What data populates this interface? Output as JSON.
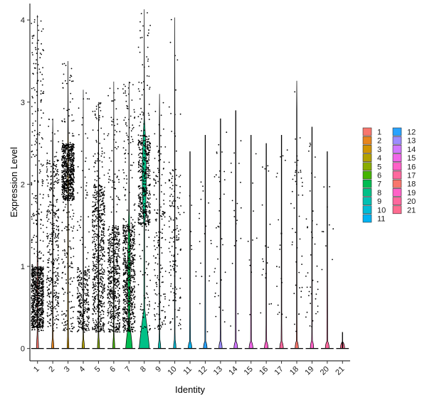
{
  "chart_data": {
    "type": "violin",
    "xlabel": "Identity",
    "ylabel": "Expression Level",
    "ylim": [
      -0.15,
      4.2
    ],
    "y_ticks": [
      0,
      1,
      2,
      3,
      4
    ],
    "grid": false,
    "legend_position": "right",
    "categories": [
      "1",
      "2",
      "3",
      "4",
      "5",
      "6",
      "7",
      "8",
      "9",
      "10",
      "11",
      "12",
      "13",
      "14",
      "15",
      "16",
      "17",
      "18",
      "19",
      "20",
      "21"
    ],
    "colors": [
      "#F8766D",
      "#E7851E",
      "#D09400",
      "#B2A100",
      "#89AC00",
      "#45B500",
      "#00BC51",
      "#00C087",
      "#00C0B2",
      "#00BCD6",
      "#00B3F2",
      "#29A3FF",
      "#9C8DFF",
      "#D277FF",
      "#F166E8",
      "#FF61C7",
      "#FF689E",
      "#F8766D",
      "#FF61C7",
      "#FF689E",
      "#FF6C91"
    ],
    "violins": [
      {
        "name": "1",
        "max": 4.06,
        "zero_fraction": 0.3,
        "density": 0.2,
        "points": 900,
        "body": [
          0.25,
          1.0
        ]
      },
      {
        "name": "2",
        "max": 2.8,
        "zero_fraction": 0.4,
        "density": 0.1,
        "points": 350,
        "body": [
          0.3,
          2.3
        ]
      },
      {
        "name": "3",
        "max": 3.5,
        "zero_fraction": 0.25,
        "density": 0.15,
        "points": 800,
        "body": [
          1.8,
          2.5
        ]
      },
      {
        "name": "4",
        "max": 3.15,
        "zero_fraction": 0.45,
        "density": 0.08,
        "points": 300,
        "body": [
          0.2,
          1.0
        ]
      },
      {
        "name": "5",
        "max": 3.0,
        "zero_fraction": 0.35,
        "density": 0.12,
        "points": 650,
        "body": [
          0.2,
          2.0
        ]
      },
      {
        "name": "6",
        "max": 3.25,
        "zero_fraction": 0.35,
        "density": 0.12,
        "points": 550,
        "body": [
          0.2,
          1.5
        ]
      },
      {
        "name": "7",
        "max": 3.25,
        "zero_fraction": 0.55,
        "density": 0.55,
        "points": 650,
        "body": [
          0.2,
          1.5
        ]
      },
      {
        "name": "8",
        "max": 4.13,
        "zero_fraction": 0.6,
        "density": 0.9,
        "points": 500,
        "body": [
          1.5,
          2.6
        ]
      },
      {
        "name": "9",
        "max": 3.1,
        "zero_fraction": 0.5,
        "density": 0.06,
        "points": 160,
        "body": [
          0.2,
          2.5
        ]
      },
      {
        "name": "10",
        "max": 4.03,
        "zero_fraction": 0.5,
        "density": 0.06,
        "points": 150,
        "body": [
          0.2,
          2.3
        ]
      },
      {
        "name": "11",
        "max": 2.28,
        "zero_fraction": 0.8,
        "density": 0.02,
        "points": 8,
        "body": [
          0.5,
          2.2
        ]
      },
      {
        "name": "12",
        "max": 2.42,
        "zero_fraction": 0.8,
        "density": 0.02,
        "points": 18,
        "body": [
          0.8,
          2.4
        ]
      },
      {
        "name": "13",
        "max": 2.65,
        "zero_fraction": 0.7,
        "density": 0.03,
        "points": 35,
        "body": [
          0.3,
          2.6
        ]
      },
      {
        "name": "14",
        "max": 2.76,
        "zero_fraction": 0.8,
        "density": 0.02,
        "points": 20,
        "body": [
          1.0,
          2.7
        ]
      },
      {
        "name": "15",
        "max": 2.45,
        "zero_fraction": 0.85,
        "density": 0.02,
        "points": 10,
        "body": [
          0.7,
          2.4
        ]
      },
      {
        "name": "16",
        "max": 2.35,
        "zero_fraction": 0.8,
        "density": 0.02,
        "points": 18,
        "body": [
          0.3,
          2.3
        ]
      },
      {
        "name": "17",
        "max": 2.42,
        "zero_fraction": 0.8,
        "density": 0.02,
        "points": 22,
        "body": [
          0.3,
          2.4
        ]
      },
      {
        "name": "18",
        "max": 3.26,
        "zero_fraction": 0.7,
        "density": 0.03,
        "points": 45,
        "body": [
          0.4,
          2.7
        ]
      },
      {
        "name": "19",
        "max": 2.58,
        "zero_fraction": 0.7,
        "density": 0.04,
        "points": 40,
        "body": [
          0.2,
          2.5
        ]
      },
      {
        "name": "20",
        "max": 2.2,
        "zero_fraction": 0.85,
        "density": 0.02,
        "points": 10,
        "body": [
          0.8,
          2.2
        ]
      },
      {
        "name": "21",
        "max": 0.0,
        "zero_fraction": 1.0,
        "density": 0.0,
        "points": 0,
        "body": [
          0,
          0
        ]
      }
    ]
  }
}
